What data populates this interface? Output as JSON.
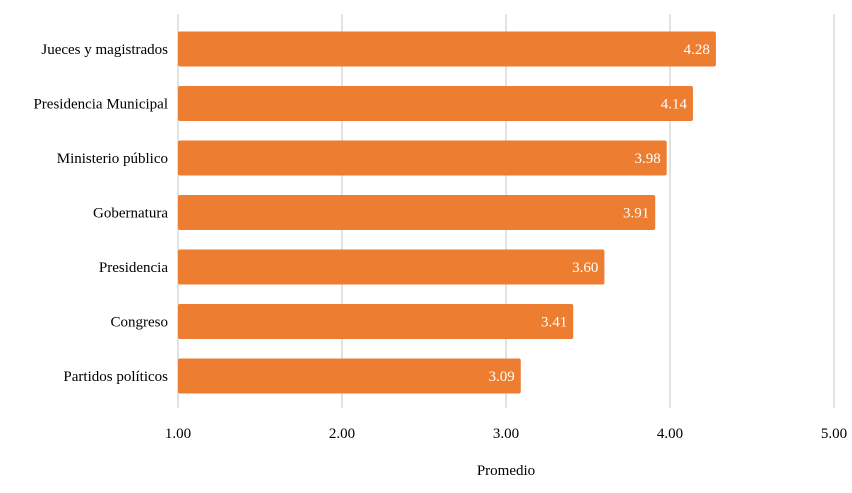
{
  "chart_data": {
    "type": "bar",
    "orientation": "horizontal",
    "title": "",
    "categories": [
      "Jueces y magistrados",
      "Presidencia Municipal",
      "Ministerio público",
      "Gobernatura",
      "Presidencia",
      "Congreso",
      "Partidos políticos"
    ],
    "values": [
      4.28,
      4.14,
      3.98,
      3.91,
      3.6,
      3.41,
      3.09
    ],
    "data_labels": [
      "4.28",
      "4.14",
      "3.98",
      "3.91",
      "3.60",
      "3.41",
      "3.09"
    ],
    "xlabel": "Promedio",
    "ylabel": "",
    "xlim": [
      1,
      5
    ],
    "xticks": [
      1,
      2,
      3,
      4,
      5
    ],
    "xtick_labels": [
      "1.00",
      "2.00",
      "3.00",
      "4.00",
      "5.00"
    ],
    "grid": true,
    "legend": "none",
    "bar_color": "#ED7D31",
    "grid_color": "#D9D9D9"
  }
}
